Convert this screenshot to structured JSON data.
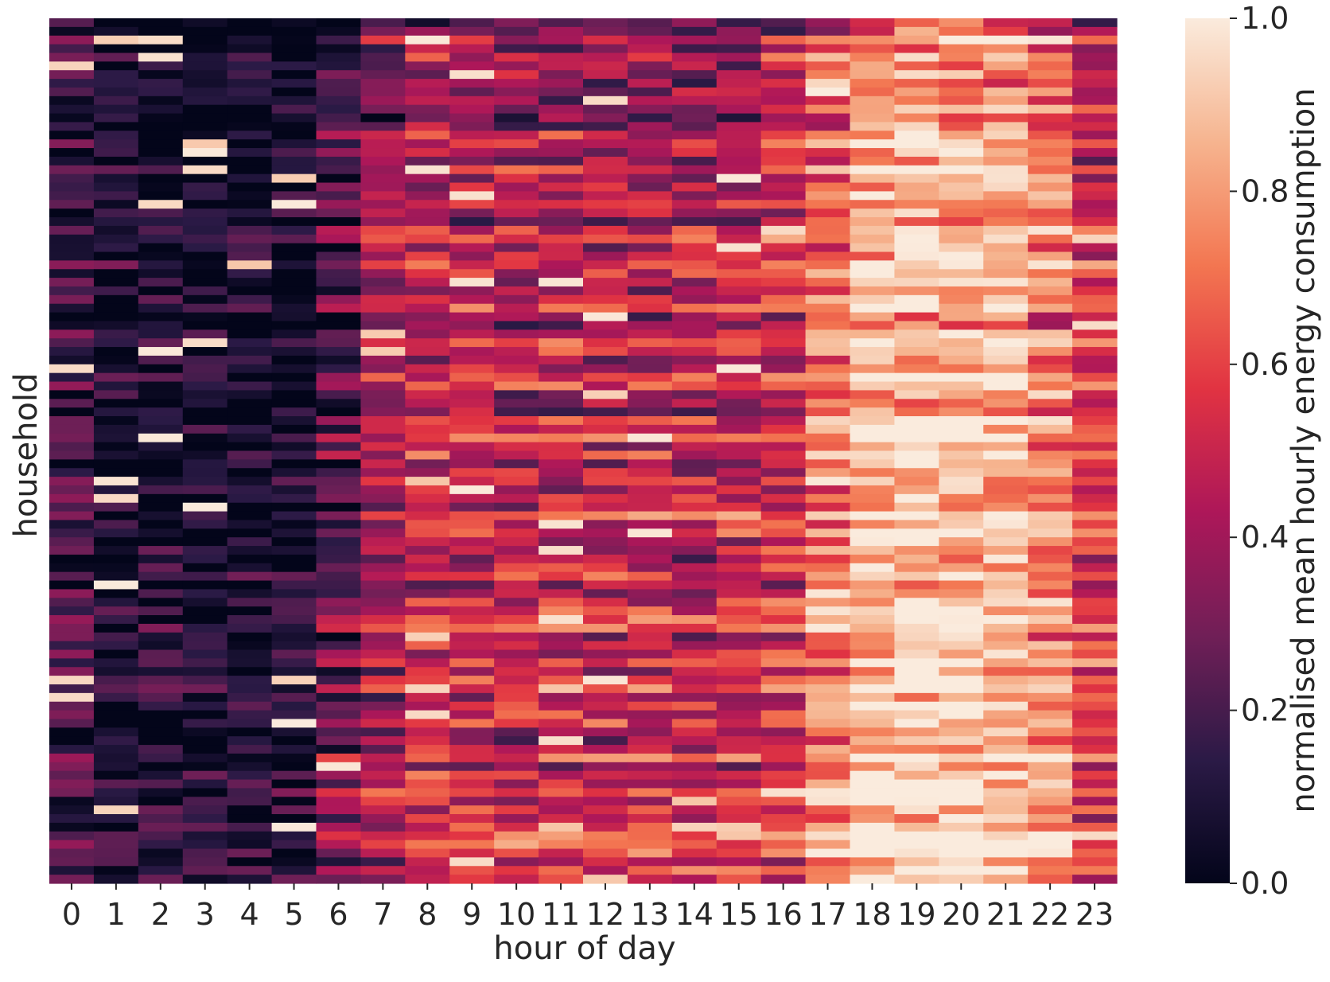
{
  "chart_data": {
    "type": "heatmap",
    "title": "",
    "xlabel": "hour of day",
    "ylabel": "household",
    "colorbar_label": "normalised mean hourly energy consumption",
    "x_categories": [
      "0",
      "1",
      "2",
      "3",
      "4",
      "5",
      "6",
      "7",
      "8",
      "9",
      "10",
      "11",
      "12",
      "13",
      "14",
      "15",
      "16",
      "17",
      "18",
      "19",
      "20",
      "21",
      "22",
      "23"
    ],
    "colorbar_ticks": [
      "0.0",
      "0.2",
      "0.4",
      "0.6",
      "0.8",
      "1.0"
    ],
    "value_range": [
      0.0,
      1.0
    ],
    "colormap": "rocket",
    "colormap_stops": [
      "#03051a",
      "#2b1a46",
      "#701f57",
      "#ad1759",
      "#e13342",
      "#f37651",
      "#f6b48f",
      "#faebdd"
    ],
    "grid": false,
    "row_count": 100,
    "hourly_profile_mean": [
      0.14,
      0.06,
      0.04,
      0.02,
      0.03,
      0.05,
      0.14,
      0.3,
      0.4,
      0.4,
      0.38,
      0.39,
      0.38,
      0.38,
      0.38,
      0.4,
      0.46,
      0.62,
      0.78,
      0.82,
      0.8,
      0.76,
      0.66,
      0.45
    ],
    "seed": 7
  }
}
